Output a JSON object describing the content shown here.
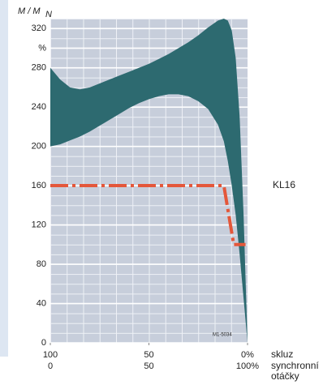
{
  "chart_data": {
    "type": "area",
    "y_label": "M / M",
    "y_label_subscript": "N",
    "x_label": "skluz",
    "x2_label": "synchronní otáčky",
    "annotation": "M1-5034",
    "xlim": [
      100,
      0
    ],
    "xticks": [
      100,
      50,
      {
        "value": 0,
        "label": "0%"
      }
    ],
    "x2lim": [
      0,
      100
    ],
    "x2ticks": [
      0,
      50,
      {
        "value": 100,
        "label": "100%"
      }
    ],
    "ylim": [
      0,
      330
    ],
    "yticks": [
      0,
      40,
      80,
      120,
      160,
      200,
      240,
      280,
      {
        "value": 300,
        "label": "%"
      },
      320
    ],
    "grid": true,
    "series": [
      {
        "type": "band",
        "color": "#2d6a70",
        "x": [
          100,
          95,
          90,
          85,
          80,
          75,
          70,
          65,
          60,
          55,
          50,
          45,
          40,
          35,
          30,
          25,
          20,
          15,
          12,
          10,
          8,
          6,
          4,
          2,
          0
        ],
        "upper": [
          280,
          268,
          260,
          258,
          260,
          264,
          268,
          272,
          276,
          280,
          284,
          289,
          294,
          300,
          306,
          313,
          321,
          328,
          330,
          328,
          318,
          290,
          230,
          130,
          0
        ],
        "lower": [
          200,
          202,
          206,
          210,
          215,
          221,
          227,
          233,
          239,
          244,
          248,
          251,
          253,
          253,
          251,
          246,
          238,
          222,
          205,
          185,
          160,
          130,
          90,
          45,
          0
        ]
      },
      {
        "type": "line",
        "name": "KL16",
        "color": "#e4573a",
        "x": [
          100,
          12,
          7,
          1
        ],
        "values": [
          160,
          160,
          100,
          100
        ]
      }
    ]
  }
}
